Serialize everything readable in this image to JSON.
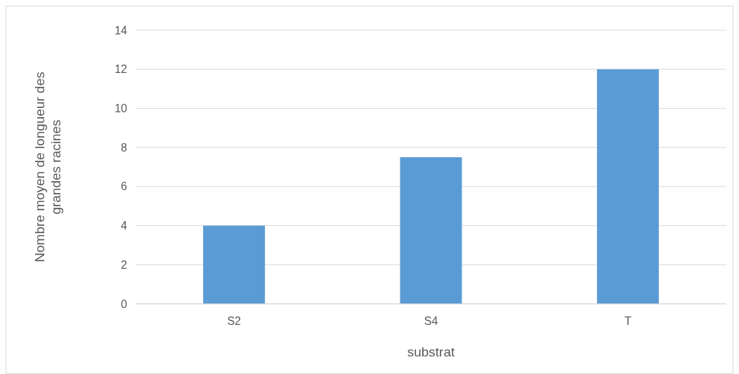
{
  "chart_data": {
    "type": "bar",
    "xlabel": "substrat",
    "ylabel": "Nombre moyen de longueur des grandes racines",
    "categories": [
      "S2",
      "S4",
      "T"
    ],
    "values": [
      4,
      7.5,
      12
    ],
    "color": "#5b9bd5",
    "ylim": [
      0,
      14
    ],
    "yticks": [
      0,
      2,
      4,
      6,
      8,
      10,
      12,
      14
    ],
    "grid": "y"
  }
}
